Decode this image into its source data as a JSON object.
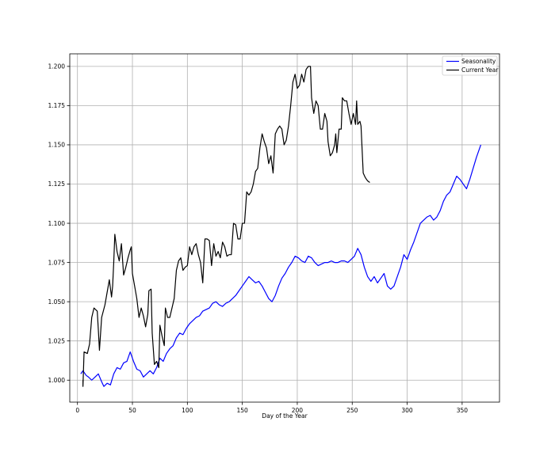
{
  "chart_data": {
    "type": "line",
    "xlabel": "Day of the Year",
    "ylabel": "",
    "xlim": [
      -7,
      384
    ],
    "ylim": [
      0.986,
      1.208
    ],
    "x_ticks": [
      0,
      50,
      100,
      150,
      200,
      250,
      300,
      350
    ],
    "y_ticks": [
      1.0,
      1.025,
      1.05,
      1.075,
      1.1,
      1.125,
      1.15,
      1.175,
      1.2
    ],
    "grid": true,
    "legend_position": "top-right",
    "series": [
      {
        "name": "Seasonality",
        "color": "#0000ff",
        "points": [
          [
            3,
            1.004
          ],
          [
            5,
            1.006
          ],
          [
            8,
            1.003
          ],
          [
            10,
            1.002
          ],
          [
            13,
            1.0
          ],
          [
            16,
            1.002
          ],
          [
            19,
            1.004
          ],
          [
            22,
            0.999
          ],
          [
            24,
            0.996
          ],
          [
            27,
            0.998
          ],
          [
            30,
            0.997
          ],
          [
            33,
            1.004
          ],
          [
            36,
            1.008
          ],
          [
            39,
            1.007
          ],
          [
            42,
            1.011
          ],
          [
            45,
            1.012
          ],
          [
            48,
            1.018
          ],
          [
            51,
            1.012
          ],
          [
            54,
            1.007
          ],
          [
            57,
            1.006
          ],
          [
            60,
            1.002
          ],
          [
            63,
            1.004
          ],
          [
            66,
            1.006
          ],
          [
            69,
            1.004
          ],
          [
            72,
            1.008
          ],
          [
            75,
            1.014
          ],
          [
            78,
            1.012
          ],
          [
            81,
            1.017
          ],
          [
            84,
            1.02
          ],
          [
            87,
            1.022
          ],
          [
            90,
            1.027
          ],
          [
            93,
            1.03
          ],
          [
            96,
            1.029
          ],
          [
            99,
            1.033
          ],
          [
            102,
            1.036
          ],
          [
            105,
            1.038
          ],
          [
            108,
            1.04
          ],
          [
            111,
            1.041
          ],
          [
            114,
            1.044
          ],
          [
            117,
            1.045
          ],
          [
            120,
            1.046
          ],
          [
            123,
            1.049
          ],
          [
            126,
            1.05
          ],
          [
            129,
            1.048
          ],
          [
            132,
            1.047
          ],
          [
            135,
            1.049
          ],
          [
            138,
            1.05
          ],
          [
            141,
            1.052
          ],
          [
            144,
            1.054
          ],
          [
            147,
            1.057
          ],
          [
            150,
            1.06
          ],
          [
            153,
            1.063
          ],
          [
            156,
            1.066
          ],
          [
            159,
            1.064
          ],
          [
            162,
            1.062
          ],
          [
            165,
            1.063
          ],
          [
            168,
            1.06
          ],
          [
            171,
            1.056
          ],
          [
            174,
            1.052
          ],
          [
            177,
            1.05
          ],
          [
            180,
            1.054
          ],
          [
            183,
            1.06
          ],
          [
            186,
            1.065
          ],
          [
            189,
            1.068
          ],
          [
            192,
            1.072
          ],
          [
            195,
            1.075
          ],
          [
            198,
            1.079
          ],
          [
            201,
            1.078
          ],
          [
            204,
            1.076
          ],
          [
            207,
            1.075
          ],
          [
            210,
            1.079
          ],
          [
            213,
            1.078
          ],
          [
            216,
            1.075
          ],
          [
            219,
            1.073
          ],
          [
            222,
            1.074
          ],
          [
            225,
            1.075
          ],
          [
            228,
            1.075
          ],
          [
            231,
            1.076
          ],
          [
            234,
            1.075
          ],
          [
            237,
            1.075
          ],
          [
            240,
            1.076
          ],
          [
            243,
            1.076
          ],
          [
            246,
            1.075
          ],
          [
            249,
            1.077
          ],
          [
            252,
            1.079
          ],
          [
            255,
            1.084
          ],
          [
            258,
            1.08
          ],
          [
            261,
            1.072
          ],
          [
            264,
            1.066
          ],
          [
            267,
            1.063
          ],
          [
            270,
            1.066
          ],
          [
            273,
            1.062
          ],
          [
            276,
            1.065
          ],
          [
            279,
            1.068
          ],
          [
            282,
            1.06
          ],
          [
            285,
            1.058
          ],
          [
            288,
            1.06
          ],
          [
            291,
            1.066
          ],
          [
            294,
            1.072
          ],
          [
            297,
            1.08
          ],
          [
            300,
            1.077
          ],
          [
            303,
            1.083
          ],
          [
            306,
            1.088
          ],
          [
            309,
            1.094
          ],
          [
            312,
            1.1
          ],
          [
            315,
            1.102
          ],
          [
            318,
            1.104
          ],
          [
            321,
            1.105
          ],
          [
            324,
            1.102
          ],
          [
            327,
            1.104
          ],
          [
            330,
            1.108
          ],
          [
            333,
            1.114
          ],
          [
            336,
            1.118
          ],
          [
            339,
            1.12
          ],
          [
            342,
            1.125
          ],
          [
            345,
            1.13
          ],
          [
            348,
            1.128
          ],
          [
            351,
            1.125
          ],
          [
            354,
            1.122
          ],
          [
            357,
            1.128
          ],
          [
            360,
            1.135
          ],
          [
            363,
            1.142
          ],
          [
            366,
            1.148
          ],
          [
            367,
            1.15
          ]
        ]
      },
      {
        "name": "Current Year",
        "color": "#000000",
        "points": [
          [
            5,
            1.0
          ],
          [
            5,
            0.996
          ],
          [
            6,
            1.018
          ],
          [
            9,
            1.017
          ],
          [
            11,
            1.023
          ],
          [
            13,
            1.04
          ],
          [
            15,
            1.046
          ],
          [
            18,
            1.044
          ],
          [
            19,
            1.032
          ],
          [
            20,
            1.019
          ],
          [
            22,
            1.04
          ],
          [
            25,
            1.048
          ],
          [
            27,
            1.056
          ],
          [
            29,
            1.064
          ],
          [
            31,
            1.053
          ],
          [
            32,
            1.06
          ],
          [
            33,
            1.075
          ],
          [
            34,
            1.093
          ],
          [
            36,
            1.082
          ],
          [
            38,
            1.076
          ],
          [
            40,
            1.087
          ],
          [
            42,
            1.067
          ],
          [
            44,
            1.072
          ],
          [
            46,
            1.078
          ],
          [
            48,
            1.083
          ],
          [
            49,
            1.085
          ],
          [
            50,
            1.068
          ],
          [
            52,
            1.06
          ],
          [
            54,
            1.052
          ],
          [
            56,
            1.04
          ],
          [
            58,
            1.046
          ],
          [
            60,
            1.041
          ],
          [
            62,
            1.034
          ],
          [
            64,
            1.042
          ],
          [
            65,
            1.057
          ],
          [
            67,
            1.058
          ],
          [
            68,
            1.03
          ],
          [
            70,
            1.01
          ],
          [
            72,
            1.012
          ],
          [
            74,
            1.008
          ],
          [
            75,
            1.035
          ],
          [
            77,
            1.028
          ],
          [
            79,
            1.022
          ],
          [
            80,
            1.046
          ],
          [
            82,
            1.04
          ],
          [
            84,
            1.04
          ],
          [
            86,
            1.046
          ],
          [
            88,
            1.052
          ],
          [
            90,
            1.07
          ],
          [
            92,
            1.076
          ],
          [
            94,
            1.078
          ],
          [
            96,
            1.07
          ],
          [
            98,
            1.072
          ],
          [
            100,
            1.073
          ],
          [
            102,
            1.085
          ],
          [
            104,
            1.08
          ],
          [
            106,
            1.085
          ],
          [
            108,
            1.087
          ],
          [
            110,
            1.08
          ],
          [
            112,
            1.075
          ],
          [
            114,
            1.062
          ],
          [
            116,
            1.09
          ],
          [
            118,
            1.09
          ],
          [
            120,
            1.089
          ],
          [
            122,
            1.073
          ],
          [
            124,
            1.087
          ],
          [
            126,
            1.079
          ],
          [
            128,
            1.082
          ],
          [
            130,
            1.078
          ],
          [
            132,
            1.088
          ],
          [
            134,
            1.085
          ],
          [
            136,
            1.079
          ],
          [
            138,
            1.08
          ],
          [
            140,
            1.08
          ],
          [
            142,
            1.1
          ],
          [
            144,
            1.099
          ],
          [
            146,
            1.09
          ],
          [
            148,
            1.09
          ],
          [
            150,
            1.1
          ],
          [
            152,
            1.1
          ],
          [
            154,
            1.12
          ],
          [
            156,
            1.118
          ],
          [
            158,
            1.12
          ],
          [
            160,
            1.125
          ],
          [
            162,
            1.133
          ],
          [
            164,
            1.135
          ],
          [
            166,
            1.148
          ],
          [
            168,
            1.157
          ],
          [
            170,
            1.152
          ],
          [
            172,
            1.148
          ],
          [
            174,
            1.138
          ],
          [
            176,
            1.143
          ],
          [
            178,
            1.132
          ],
          [
            180,
            1.157
          ],
          [
            182,
            1.16
          ],
          [
            184,
            1.162
          ],
          [
            186,
            1.16
          ],
          [
            188,
            1.15
          ],
          [
            190,
            1.153
          ],
          [
            192,
            1.162
          ],
          [
            194,
            1.175
          ],
          [
            196,
            1.19
          ],
          [
            198,
            1.195
          ],
          [
            200,
            1.186
          ],
          [
            202,
            1.188
          ],
          [
            204,
            1.195
          ],
          [
            206,
            1.19
          ],
          [
            208,
            1.198
          ],
          [
            210,
            1.2
          ],
          [
            212,
            1.2
          ],
          [
            213,
            1.18
          ],
          [
            215,
            1.17
          ],
          [
            217,
            1.178
          ],
          [
            219,
            1.175
          ],
          [
            221,
            1.16
          ],
          [
            223,
            1.16
          ],
          [
            225,
            1.17
          ],
          [
            227,
            1.165
          ],
          [
            228,
            1.152
          ],
          [
            230,
            1.143
          ],
          [
            232,
            1.145
          ],
          [
            234,
            1.15
          ],
          [
            235,
            1.157
          ],
          [
            236,
            1.145
          ],
          [
            238,
            1.16
          ],
          [
            240,
            1.16
          ],
          [
            241,
            1.18
          ],
          [
            243,
            1.178
          ],
          [
            245,
            1.178
          ],
          [
            247,
            1.17
          ],
          [
            249,
            1.163
          ],
          [
            251,
            1.17
          ],
          [
            253,
            1.163
          ],
          [
            254,
            1.178
          ],
          [
            255,
            1.163
          ],
          [
            257,
            1.165
          ],
          [
            258,
            1.162
          ],
          [
            260,
            1.132
          ],
          [
            262,
            1.129
          ],
          [
            264,
            1.127
          ],
          [
            266,
            1.126
          ]
        ]
      }
    ]
  }
}
